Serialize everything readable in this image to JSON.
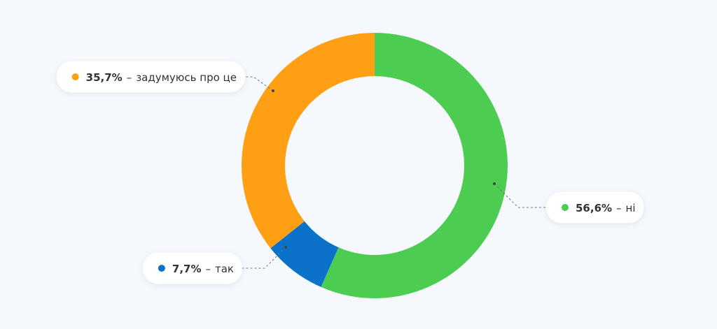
{
  "chart_data": {
    "type": "donut",
    "categories": [
      "ні",
      "так",
      "задумуюсь про це"
    ],
    "values": [
      56.6,
      7.7,
      35.7
    ],
    "value_labels": [
      "56,6%",
      "7,7%",
      "35,7%"
    ],
    "separator": "–",
    "colors": [
      "#4ccd52",
      "#0a72c9",
      "#fe9f14"
    ]
  }
}
